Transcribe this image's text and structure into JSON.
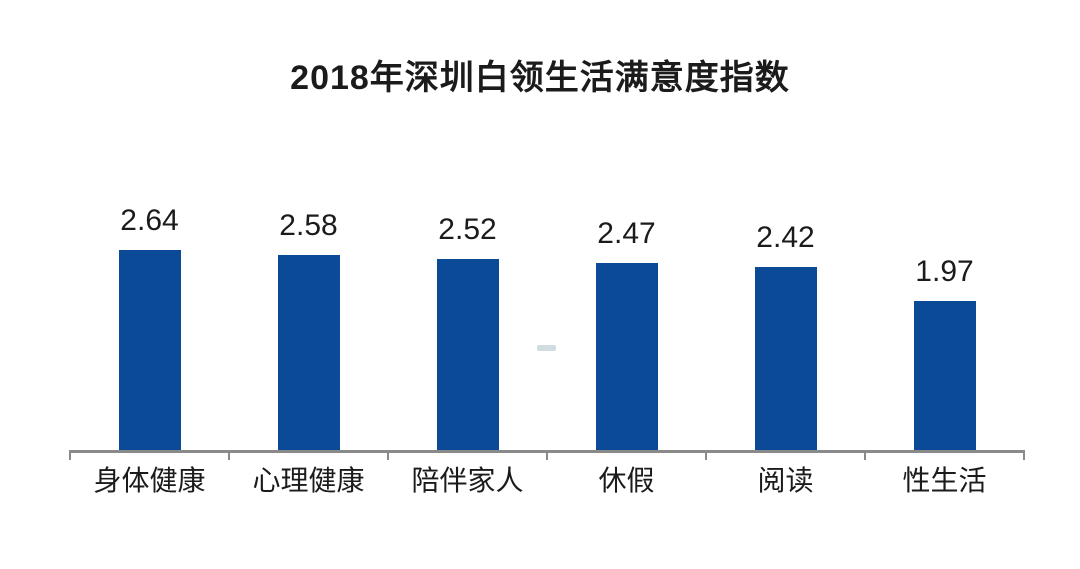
{
  "chart_data": {
    "type": "bar",
    "title": "2018年深圳白领生活满意度指数",
    "categories": [
      "身体健康",
      "心理健康",
      "陪伴家人",
      "休假",
      "阅读",
      "性生活"
    ],
    "values": [
      2.64,
      2.58,
      2.52,
      2.47,
      2.42,
      1.97
    ],
    "value_labels": [
      "2.64",
      "2.58",
      "2.52",
      "2.47",
      "2.42",
      "1.97"
    ],
    "xlabel": "",
    "ylabel": "",
    "ylim": [
      0,
      3
    ],
    "grid": false,
    "legend": "none",
    "data_label_position": "above-bar",
    "colors": {
      "bar": "#0b4a96",
      "axis": "#8a8a8a",
      "title_text": "#1b1b1b",
      "label_text": "#1b1b1b",
      "background": "#ffffff",
      "watermark": "#b8c8d2"
    }
  }
}
